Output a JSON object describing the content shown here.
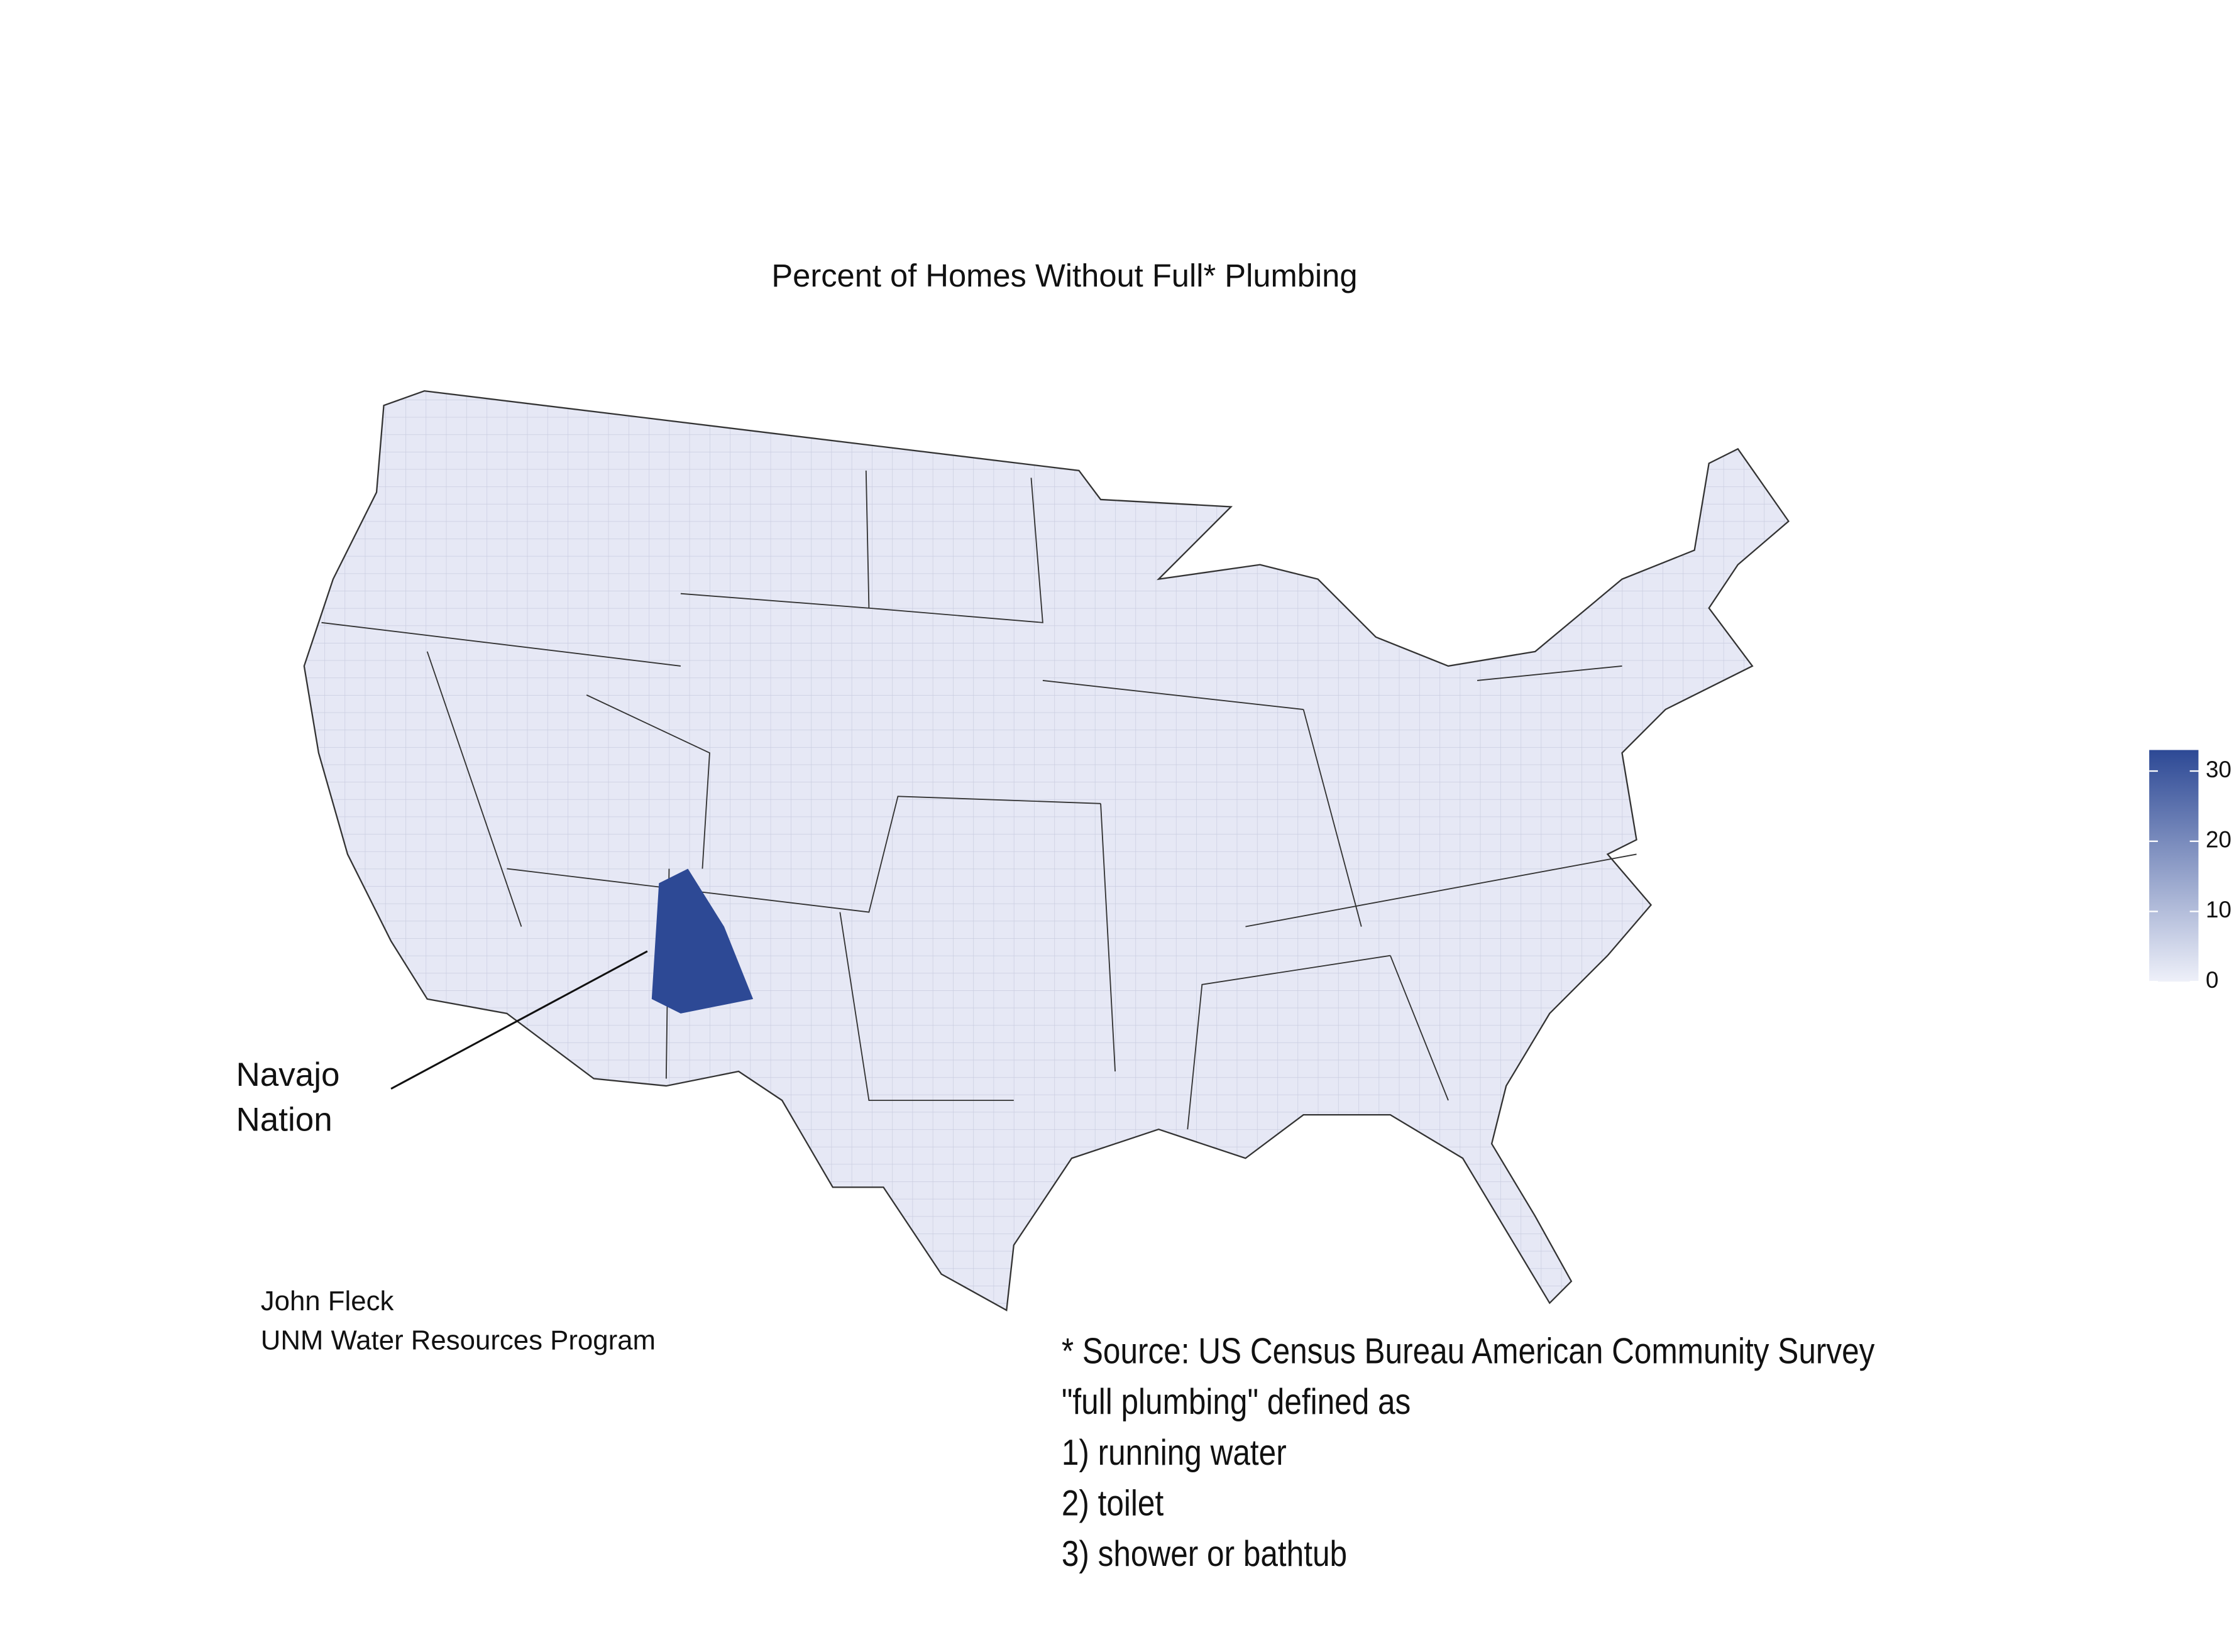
{
  "chart_data": {
    "type": "choropleth",
    "title": "Percent of Homes Without Full* Plumbing",
    "annotation": [
      "Navajo",
      "Nation"
    ],
    "credit": [
      "John Fleck",
      "UNM Water Resources Program"
    ],
    "note": [
      "* Source: US Census Bureau American Community Survey",
      "\"full plumbing\" defined as",
      "1) running water",
      "2) toilet",
      "3) shower or bathtub"
    ],
    "colorbar": {
      "clim": [
        0,
        33
      ],
      "ticks": [
        0,
        10,
        20,
        30
      ],
      "colors": [
        "#eef0f9",
        "#2d4995"
      ]
    }
  }
}
